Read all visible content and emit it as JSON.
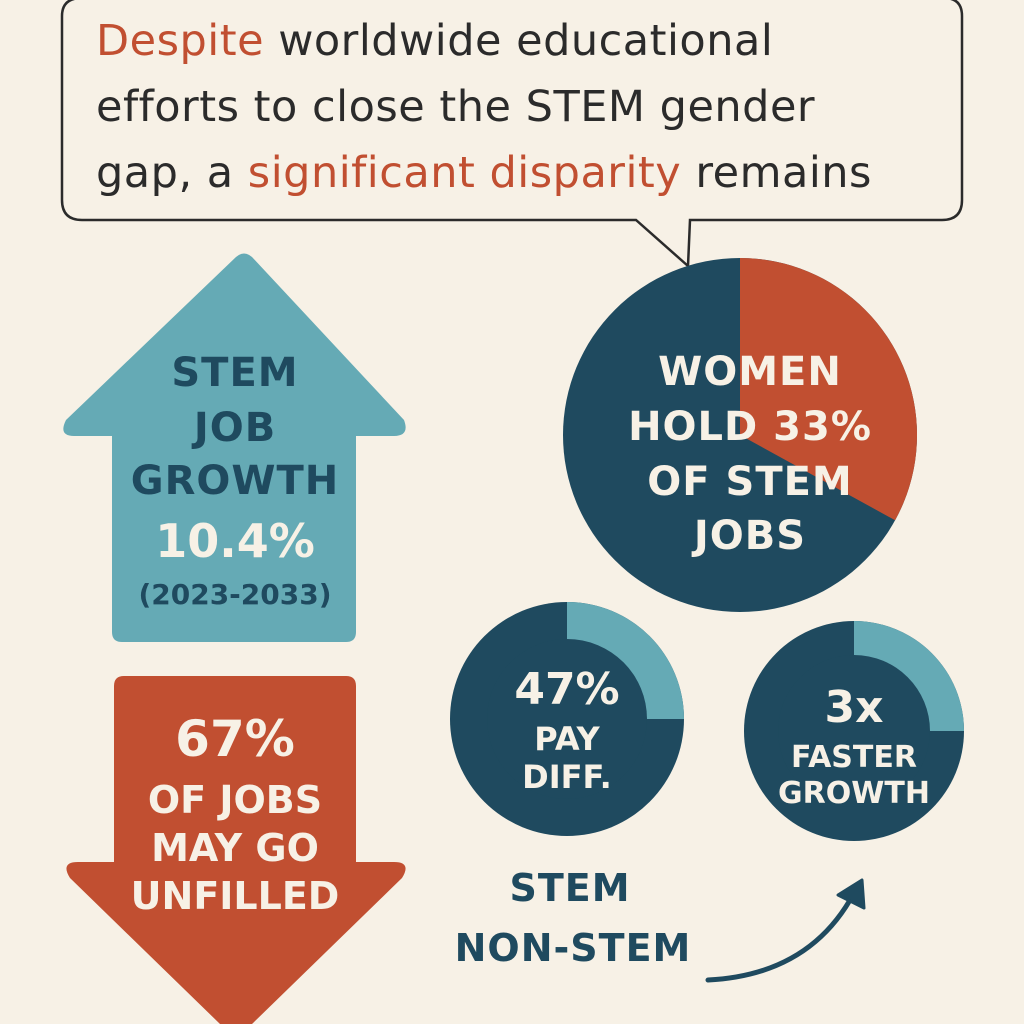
{
  "colors": {
    "background": "#f7f1e6",
    "teal": "#65aab5",
    "navy": "#1f4a5f",
    "rust": "#c14f31",
    "cream": "#f7f1e6"
  },
  "headline": {
    "line1_accent": "Despite",
    "line1_rest": " worldwide educational",
    "line2": "efforts to close the STEM gender",
    "line3_pre": "gap, a ",
    "line3_accent": "significant disparity",
    "line3_post": " remains"
  },
  "growth_arrow": {
    "title_line1": "STEM",
    "title_line2": "JOB",
    "title_line3": "GROWTH",
    "value": "10.4%",
    "years": "(2023-2033)"
  },
  "unfilled_arrow": {
    "value": "67%",
    "line1": "OF JOBS",
    "line2": "MAY GO",
    "line3": "UNFILLED"
  },
  "women_pie": {
    "share_percent": 33,
    "line1": "WOMEN",
    "line2": "HOLD 33%",
    "line3": "OF STEM",
    "line4": "JOBS"
  },
  "pay_circle": {
    "fill_fraction": 0.25,
    "value": "47%",
    "line1": "PAY",
    "line2": "DIFF."
  },
  "growth_circle": {
    "fill_fraction": 0.25,
    "value": "3x",
    "line1": "FASTER",
    "line2": "GROWTH"
  },
  "legend": {
    "stem": "STEM",
    "non_stem": "NON-STEM"
  },
  "icons": {
    "arrow_up": "arrow-up-icon",
    "arrow_down": "arrow-down-icon",
    "curved_arrow": "curved-arrow-icon"
  }
}
